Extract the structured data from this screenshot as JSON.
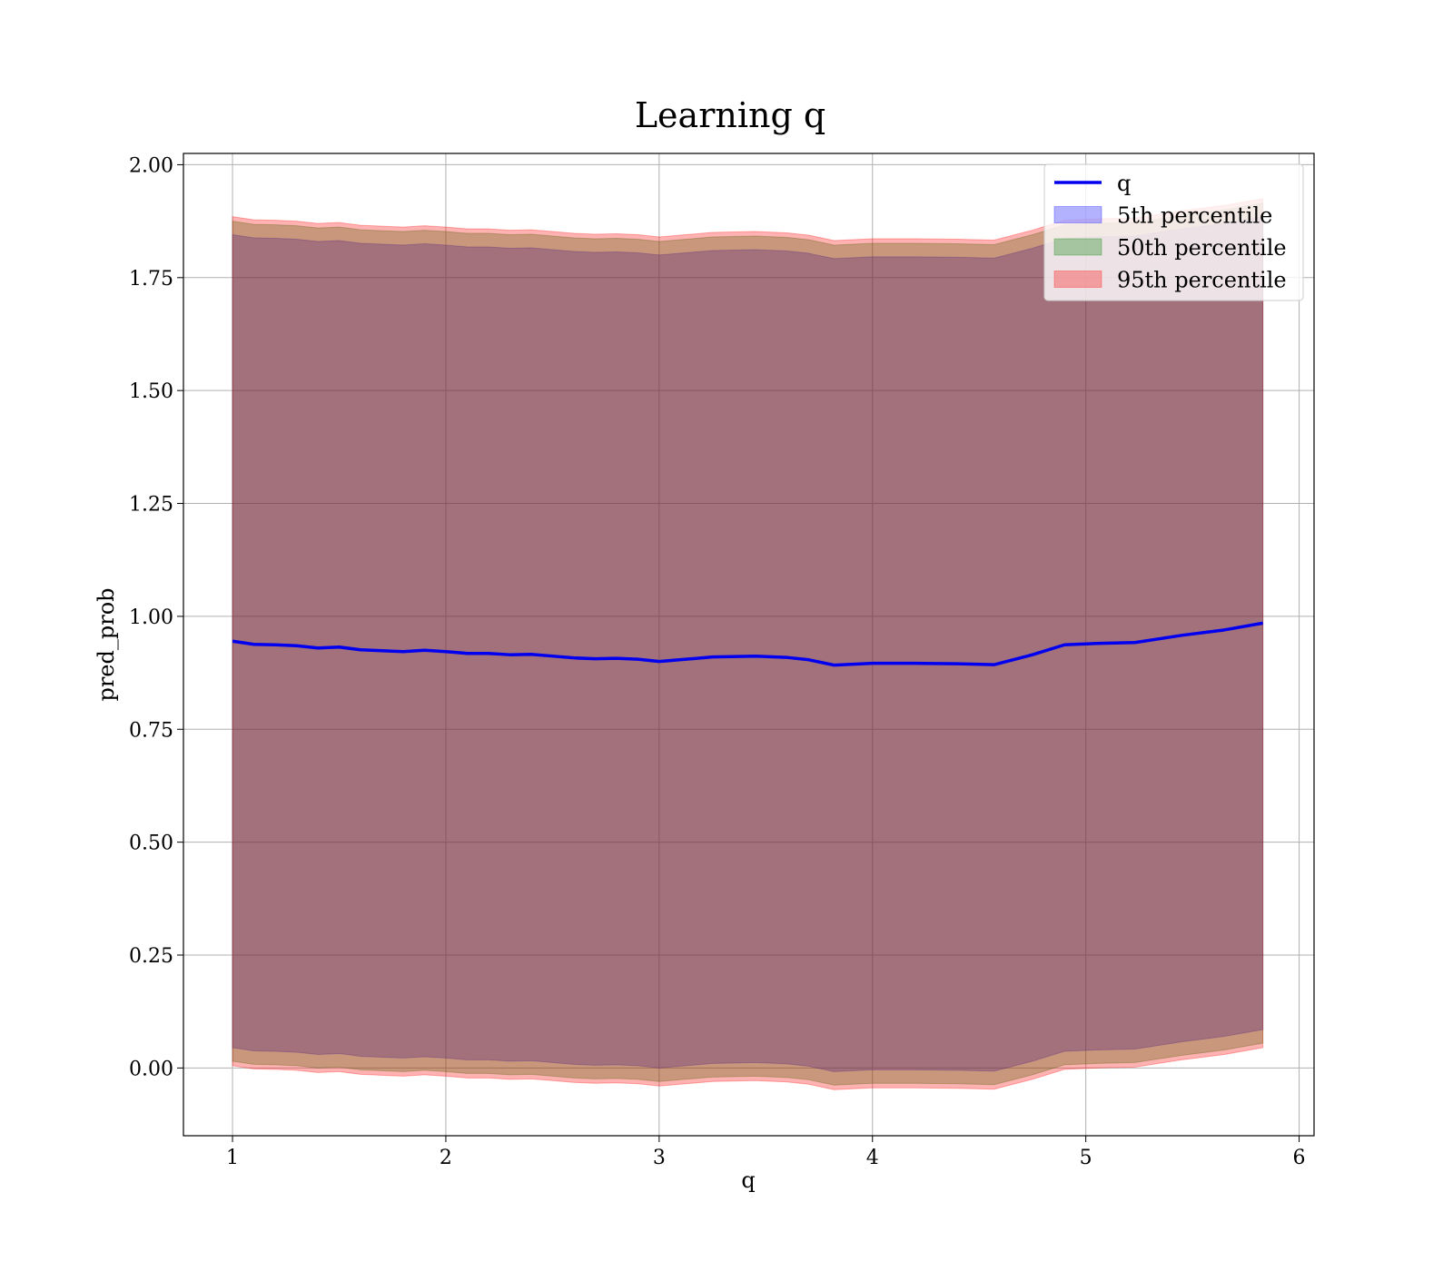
{
  "chart_data": {
    "type": "area",
    "title": "Learning q",
    "xlabel": "q",
    "ylabel": "pred_prob",
    "xlim": [
      0.77,
      6.07
    ],
    "ylim": [
      -0.15,
      2.025
    ],
    "xticks": [
      "1",
      "2",
      "3",
      "4",
      "5",
      "6"
    ],
    "xtick_values": [
      1,
      2,
      3,
      4,
      5,
      6
    ],
    "yticks": [
      "0.00",
      "0.25",
      "0.50",
      "0.75",
      "1.00",
      "1.25",
      "1.50",
      "1.75",
      "2.00"
    ],
    "ytick_values": [
      0,
      0.25,
      0.5,
      0.75,
      1.0,
      1.25,
      1.5,
      1.75,
      2.0
    ],
    "grid": true,
    "legend_placement": "top-right",
    "x": [
      1.0,
      1.1,
      1.2,
      1.3,
      1.4,
      1.5,
      1.6,
      1.7,
      1.8,
      1.9,
      2.0,
      2.1,
      2.2,
      2.3,
      2.4,
      2.5,
      2.6,
      2.7,
      2.8,
      2.9,
      3.0,
      3.1,
      3.25,
      3.45,
      3.6,
      3.7,
      3.82,
      4.0,
      4.2,
      4.4,
      4.57,
      4.75,
      4.9,
      5.05,
      5.23,
      5.45,
      5.65,
      5.83
    ],
    "series": [
      {
        "name": "q",
        "kind": "line",
        "color": "#0000ee",
        "values": [
          0.945,
          0.938,
          0.937,
          0.935,
          0.93,
          0.932,
          0.926,
          0.924,
          0.922,
          0.925,
          0.922,
          0.918,
          0.918,
          0.915,
          0.916,
          0.912,
          0.908,
          0.906,
          0.907,
          0.905,
          0.9,
          0.904,
          0.91,
          0.912,
          0.909,
          0.904,
          0.892,
          0.896,
          0.896,
          0.895,
          0.893,
          0.915,
          0.937,
          0.94,
          0.942,
          0.958,
          0.97,
          0.985
        ]
      },
      {
        "name": "5th percentile",
        "kind": "band",
        "color": "#0000ff",
        "lower": [
          0.045,
          0.038,
          0.037,
          0.035,
          0.03,
          0.032,
          0.026,
          0.024,
          0.022,
          0.025,
          0.022,
          0.018,
          0.018,
          0.015,
          0.016,
          0.012,
          0.008,
          0.006,
          0.007,
          0.005,
          0.0,
          0.004,
          0.01,
          0.012,
          0.009,
          0.004,
          -0.008,
          -0.004,
          -0.004,
          -0.005,
          -0.007,
          0.015,
          0.037,
          0.04,
          0.042,
          0.058,
          0.07,
          0.085
        ],
        "upper": [
          1.845,
          1.838,
          1.837,
          1.835,
          1.83,
          1.832,
          1.826,
          1.824,
          1.822,
          1.825,
          1.822,
          1.818,
          1.818,
          1.815,
          1.816,
          1.812,
          1.808,
          1.806,
          1.807,
          1.805,
          1.8,
          1.804,
          1.81,
          1.812,
          1.809,
          1.804,
          1.792,
          1.796,
          1.796,
          1.795,
          1.793,
          1.815,
          1.837,
          1.84,
          1.842,
          1.858,
          1.87,
          1.885
        ]
      },
      {
        "name": "50th percentile",
        "kind": "band",
        "color": "#008000",
        "lower": [
          0.015,
          0.008,
          0.007,
          0.005,
          0.0,
          0.002,
          -0.004,
          -0.006,
          -0.008,
          -0.005,
          -0.008,
          -0.012,
          -0.012,
          -0.015,
          -0.014,
          -0.018,
          -0.022,
          -0.024,
          -0.023,
          -0.025,
          -0.03,
          -0.026,
          -0.02,
          -0.018,
          -0.021,
          -0.026,
          -0.038,
          -0.034,
          -0.034,
          -0.035,
          -0.037,
          -0.015,
          0.007,
          0.01,
          0.012,
          0.028,
          0.04,
          0.055
        ],
        "upper": [
          1.875,
          1.868,
          1.867,
          1.865,
          1.86,
          1.862,
          1.856,
          1.854,
          1.852,
          1.855,
          1.852,
          1.848,
          1.848,
          1.845,
          1.846,
          1.842,
          1.838,
          1.836,
          1.837,
          1.835,
          1.83,
          1.834,
          1.84,
          1.842,
          1.839,
          1.834,
          1.822,
          1.826,
          1.826,
          1.825,
          1.823,
          1.845,
          1.867,
          1.87,
          1.872,
          1.888,
          1.9,
          1.915
        ]
      },
      {
        "name": "95th percentile",
        "kind": "band",
        "color": "#ff0000",
        "lower": [
          0.005,
          -0.002,
          -0.003,
          -0.005,
          -0.01,
          -0.008,
          -0.014,
          -0.016,
          -0.018,
          -0.015,
          -0.018,
          -0.022,
          -0.022,
          -0.025,
          -0.024,
          -0.028,
          -0.032,
          -0.034,
          -0.033,
          -0.035,
          -0.04,
          -0.036,
          -0.03,
          -0.028,
          -0.031,
          -0.036,
          -0.048,
          -0.044,
          -0.044,
          -0.045,
          -0.047,
          -0.025,
          -0.003,
          0.0,
          0.002,
          0.018,
          0.03,
          0.045
        ],
        "upper": [
          1.885,
          1.878,
          1.877,
          1.875,
          1.87,
          1.872,
          1.866,
          1.864,
          1.862,
          1.865,
          1.862,
          1.858,
          1.858,
          1.855,
          1.856,
          1.852,
          1.848,
          1.846,
          1.847,
          1.845,
          1.84,
          1.844,
          1.85,
          1.852,
          1.849,
          1.844,
          1.832,
          1.836,
          1.836,
          1.835,
          1.833,
          1.855,
          1.877,
          1.88,
          1.882,
          1.898,
          1.91,
          1.925
        ]
      }
    ]
  }
}
